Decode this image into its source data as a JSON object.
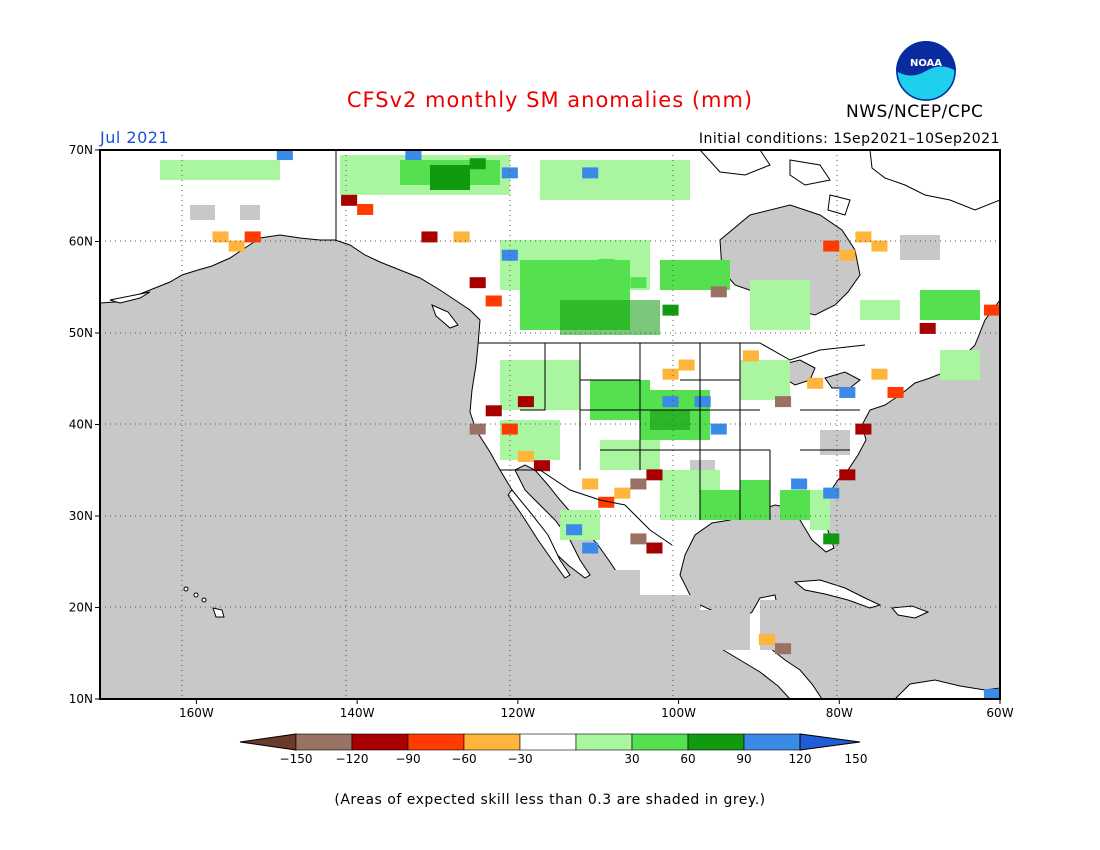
{
  "title": "CFSv2 monthly SM anomalies (mm)",
  "agency": "NWS/NCEP/CPC",
  "valid_month": "Jul 2021",
  "initial_conditions": "Initial conditions: 1Sep2021–10Sep2021",
  "logo": {
    "text": "NOAA",
    "icon": "noaa-logo-icon"
  },
  "footnote": "(Areas of expected skill less than 0.3 are shaded in grey.)",
  "map": {
    "lon_range": [
      -172,
      -60
    ],
    "lat_range": [
      10,
      70
    ],
    "lon_ticks": [
      {
        "value": -160,
        "label": "160W"
      },
      {
        "value": -140,
        "label": "140W"
      },
      {
        "value": -120,
        "label": "120W"
      },
      {
        "value": -100,
        "label": "100W"
      },
      {
        "value": -80,
        "label": "80W"
      },
      {
        "value": -60,
        "label": "60W"
      }
    ],
    "lat_ticks": [
      {
        "value": 70,
        "label": "70N"
      },
      {
        "value": 60,
        "label": "60N"
      },
      {
        "value": 50,
        "label": "50N"
      },
      {
        "value": 40,
        "label": "40N"
      },
      {
        "value": 30,
        "label": "30N"
      },
      {
        "value": 20,
        "label": "20N"
      },
      {
        "value": 10,
        "label": "10N"
      }
    ],
    "ocean_color": "#c8c8c8",
    "land_color": "#ffffff",
    "low_skill_color": "#c8c8c8",
    "anomaly_cells": [
      {
        "lon": -157,
        "lat": 60.5,
        "cat": "-45"
      },
      {
        "lon": -155,
        "lat": 59.5,
        "cat": "-45"
      },
      {
        "lon": -153,
        "lat": 60.5,
        "cat": "-75"
      },
      {
        "lon": -141,
        "lat": 64.5,
        "cat": "-105"
      },
      {
        "lon": -139,
        "lat": 63.5,
        "cat": "-75"
      },
      {
        "lon": -131,
        "lat": 60.5,
        "cat": "-105"
      },
      {
        "lon": -127,
        "lat": 60.5,
        "cat": "-45"
      },
      {
        "lon": -125,
        "lat": 55.5,
        "cat": "-105"
      },
      {
        "lon": -123,
        "lat": 53.5,
        "cat": "-75"
      },
      {
        "lon": -121,
        "lat": 58.5,
        "cat": "135"
      },
      {
        "lon": -113,
        "lat": 59.5,
        "cat": "45"
      },
      {
        "lon": -109,
        "lat": 57.5,
        "cat": "75"
      },
      {
        "lon": -105,
        "lat": 55.5,
        "cat": "75"
      },
      {
        "lon": -101,
        "lat": 52.5,
        "cat": "105"
      },
      {
        "lon": -95,
        "lat": 54.5,
        "cat": "-135"
      },
      {
        "lon": -149,
        "lat": 69.5,
        "cat": "135"
      },
      {
        "lon": -133,
        "lat": 69.5,
        "cat": "135"
      },
      {
        "lon": -125,
        "lat": 68.5,
        "cat": "105"
      },
      {
        "lon": -121,
        "lat": 67.5,
        "cat": "135"
      },
      {
        "lon": -111,
        "lat": 67.5,
        "cat": "135"
      },
      {
        "lon": -81,
        "lat": 59.5,
        "cat": "-75"
      },
      {
        "lon": -79,
        "lat": 58.5,
        "cat": "-45"
      },
      {
        "lon": -77,
        "lat": 60.5,
        "cat": "-45"
      },
      {
        "lon": -75,
        "lat": 59.5,
        "cat": "-45"
      },
      {
        "lon": -69,
        "lat": 50.5,
        "cat": "-105"
      },
      {
        "lon": -61,
        "lat": 52.5,
        "cat": "-75"
      },
      {
        "lon": -123,
        "lat": 41.5,
        "cat": "-105"
      },
      {
        "lon": -125,
        "lat": 39.5,
        "cat": "-135"
      },
      {
        "lon": -121,
        "lat": 39.5,
        "cat": "-75"
      },
      {
        "lon": -119,
        "lat": 42.5,
        "cat": "-105"
      },
      {
        "lon": -119,
        "lat": 36.5,
        "cat": "-45"
      },
      {
        "lon": -117,
        "lat": 35.5,
        "cat": "-105"
      },
      {
        "lon": -111,
        "lat": 33.5,
        "cat": "-45"
      },
      {
        "lon": -109,
        "lat": 31.5,
        "cat": "-75"
      },
      {
        "lon": -107,
        "lat": 32.5,
        "cat": "-45"
      },
      {
        "lon": -105,
        "lat": 33.5,
        "cat": "-135"
      },
      {
        "lon": -103,
        "lat": 34.5,
        "cat": "-105"
      },
      {
        "lon": -105,
        "lat": 27.5,
        "cat": "-135"
      },
      {
        "lon": -103,
        "lat": 26.5,
        "cat": "-105"
      },
      {
        "lon": -113,
        "lat": 28.5,
        "cat": "135"
      },
      {
        "lon": -111,
        "lat": 26.5,
        "cat": "135"
      },
      {
        "lon": -101,
        "lat": 42.5,
        "cat": "135"
      },
      {
        "lon": -97,
        "lat": 42.5,
        "cat": "135"
      },
      {
        "lon": -95,
        "lat": 39.5,
        "cat": "135"
      },
      {
        "lon": -101,
        "lat": 45.5,
        "cat": "-45"
      },
      {
        "lon": -99,
        "lat": 46.5,
        "cat": "-45"
      },
      {
        "lon": -91,
        "lat": 47.5,
        "cat": "-45"
      },
      {
        "lon": -87,
        "lat": 42.5,
        "cat": "-135"
      },
      {
        "lon": -83,
        "lat": 44.5,
        "cat": "-45"
      },
      {
        "lon": -79,
        "lat": 43.5,
        "cat": "135"
      },
      {
        "lon": -77,
        "lat": 39.5,
        "cat": "-105"
      },
      {
        "lon": -75,
        "lat": 45.5,
        "cat": "-45"
      },
      {
        "lon": -73,
        "lat": 43.5,
        "cat": "-75"
      },
      {
        "lon": -85,
        "lat": 33.5,
        "cat": "135"
      },
      {
        "lon": -81,
        "lat": 32.5,
        "cat": "135"
      },
      {
        "lon": -79,
        "lat": 34.5,
        "cat": "-105"
      },
      {
        "lon": -81,
        "lat": 27.5,
        "cat": "105"
      },
      {
        "lon": -87,
        "lat": 15.5,
        "cat": "-135"
      },
      {
        "lon": -89,
        "lat": 16.5,
        "cat": "-45"
      },
      {
        "lon": -61,
        "lat": 10.5,
        "cat": "135"
      }
    ]
  },
  "colorbar": {
    "ticks": [
      "−150",
      "−120",
      "−90",
      "−60",
      "−30",
      "30",
      "60",
      "90",
      "120",
      "150"
    ],
    "bins": [
      {
        "cat": "-165",
        "color": "#6b3a2a"
      },
      {
        "cat": "-135",
        "color": "#9a7264"
      },
      {
        "cat": "-105",
        "color": "#a80000"
      },
      {
        "cat": "-75",
        "color": "#ff3b00"
      },
      {
        "cat": "-45",
        "color": "#ffb43c"
      },
      {
        "cat": "0",
        "color": "#ffffff"
      },
      {
        "cat": "45",
        "color": "#aaf5a0"
      },
      {
        "cat": "75",
        "color": "#55e04f"
      },
      {
        "cat": "105",
        "color": "#0f9a0f"
      },
      {
        "cat": "135",
        "color": "#3a8ae8"
      },
      {
        "cat": "165",
        "color": "#1f5cd8"
      }
    ]
  }
}
